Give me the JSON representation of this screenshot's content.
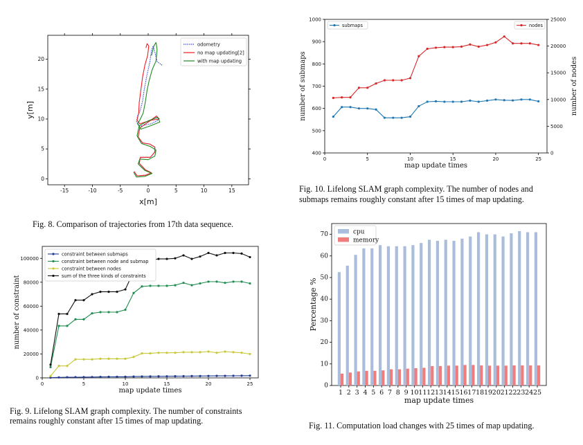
{
  "fig8": {
    "caption": "Fig. 8.   Comparison of trajectories from 17th data sequence.",
    "chart_data": {
      "type": "line",
      "xlabel": "x[m]",
      "ylabel": "y[m]",
      "xlim": [
        -18,
        18
      ],
      "ylim": [
        -1,
        24
      ],
      "xticks": [
        -15,
        -10,
        -5,
        0,
        5,
        10,
        15
      ],
      "yticks": [
        0,
        5,
        10,
        15,
        20
      ],
      "legend_position": "top-right",
      "grid": false,
      "series": [
        {
          "name": "odometry",
          "color": "#3344dd",
          "dashed": true,
          "points": [
            [
              2.5,
              19
            ],
            [
              1.6,
              19.6
            ],
            [
              1.2,
              21.2
            ],
            [
              0.9,
              22.2
            ],
            [
              0.6,
              21.5
            ],
            [
              0.3,
              19.5
            ],
            [
              -0.3,
              17
            ],
            [
              -0.7,
              15
            ],
            [
              -1,
              13
            ],
            [
              -1.4,
              11.5
            ],
            [
              -1.9,
              10.5
            ],
            [
              -2.1,
              9.5
            ],
            [
              -1.5,
              8.8
            ],
            [
              0.5,
              9.2
            ],
            [
              1.8,
              9.8
            ],
            [
              1.5,
              10.3
            ],
            [
              0,
              9.5
            ],
            [
              -1.5,
              8.5
            ],
            [
              -1.8,
              7
            ],
            [
              -1,
              6
            ],
            [
              0.3,
              5.8
            ],
            [
              1.2,
              5.3
            ],
            [
              1.2,
              4.5
            ],
            [
              0.4,
              3.6
            ],
            [
              -1.4,
              3.6
            ],
            [
              -1.6,
              2.6
            ],
            [
              -0.5,
              1.5
            ],
            [
              0.6,
              1
            ],
            [
              -0.5,
              0.6
            ],
            [
              -2,
              0.5
            ],
            [
              -2.6,
              1.3
            ]
          ]
        },
        {
          "name": "no map updating[2]",
          "color": "#ee1c24",
          "dashed": false,
          "points": [
            [
              -0.4,
              21.9
            ],
            [
              -0.2,
              22.6
            ],
            [
              0.1,
              22.2
            ],
            [
              -0.1,
              20.6
            ],
            [
              -0.6,
              19
            ],
            [
              -1,
              17
            ],
            [
              -1.3,
              14.9
            ],
            [
              -1.6,
              12.8
            ],
            [
              -1.7,
              11
            ],
            [
              -2,
              9.8
            ],
            [
              -1.5,
              9.2
            ],
            [
              0.5,
              9.8
            ],
            [
              2,
              10
            ],
            [
              1.5,
              10.5
            ],
            [
              0,
              9.5
            ],
            [
              -1.5,
              8.5
            ],
            [
              -1.8,
              7
            ],
            [
              -1,
              6
            ],
            [
              0.3,
              5.8
            ],
            [
              1.2,
              5.3
            ],
            [
              1.2,
              4.5
            ],
            [
              0.4,
              3.6
            ],
            [
              -1.4,
              3.6
            ],
            [
              -1.6,
              2.6
            ],
            [
              -0.5,
              1.5
            ],
            [
              0.6,
              1
            ],
            [
              -0.5,
              0.6
            ],
            [
              -2,
              0.5
            ],
            [
              -2.5,
              1.2
            ]
          ]
        },
        {
          "name": "with map updating",
          "color": "#1e8c1e",
          "dashed": false,
          "points": [
            [
              0.6,
              20.6
            ],
            [
              1,
              22.2
            ],
            [
              1.4,
              22.8
            ],
            [
              1.6,
              21.6
            ],
            [
              1.4,
              19.7
            ],
            [
              0.7,
              18.2
            ],
            [
              0.2,
              16.5
            ],
            [
              -0.2,
              14.8
            ],
            [
              -0.5,
              12.9
            ],
            [
              -0.9,
              11
            ],
            [
              -1.4,
              10
            ],
            [
              -1.9,
              9.2
            ],
            [
              -1.3,
              8.3
            ],
            [
              0.5,
              8.9
            ],
            [
              2.1,
              9.5
            ],
            [
              1.7,
              10.3
            ],
            [
              0,
              9.7
            ],
            [
              -1.6,
              8.9
            ],
            [
              -2,
              7.2
            ],
            [
              -1.2,
              5.9
            ],
            [
              0.4,
              5.4
            ],
            [
              1.4,
              4.8
            ],
            [
              1.2,
              3.8
            ],
            [
              0,
              3.2
            ],
            [
              -1.5,
              3.3
            ],
            [
              -1.8,
              2.5
            ],
            [
              -0.6,
              1.4
            ],
            [
              0.7,
              0.9
            ],
            [
              -0.6,
              0.4
            ],
            [
              -2.1,
              0.3
            ],
            [
              -2.6,
              1.1
            ]
          ]
        }
      ]
    }
  },
  "fig9": {
    "caption_line1": "Fig. 9.    Lifelong SLAM graph complexity. The number of constraints",
    "caption_line2": "remains roughly constant after 15 times of map updating.",
    "chart_data": {
      "type": "line",
      "xlabel": "map update times",
      "ylabel": "number of constraint",
      "xlim": [
        0,
        26
      ],
      "ylim": [
        0,
        110000
      ],
      "xticks": [
        0,
        5,
        10,
        15,
        20,
        25
      ],
      "yticks": [
        0,
        20000,
        40000,
        60000,
        80000,
        100000
      ],
      "legend_position": "top-left",
      "x": [
        1,
        2,
        3,
        4,
        5,
        6,
        7,
        8,
        9,
        10,
        11,
        12,
        13,
        14,
        15,
        16,
        17,
        18,
        19,
        20,
        21,
        22,
        23,
        24,
        25
      ],
      "series": [
        {
          "name": "constraint between submaps",
          "color": "#1f3a93",
          "values": [
            200,
            400,
            500,
            600,
            650,
            700,
            800,
            850,
            900,
            950,
            1100,
            1200,
            1250,
            1300,
            1350,
            1400,
            1450,
            1500,
            1550,
            1600,
            1650,
            1700,
            1750,
            1800,
            1850
          ]
        },
        {
          "name": "constraint between node and submap",
          "color": "#1e8c4e",
          "values": [
            9000,
            43500,
            43500,
            49000,
            49000,
            54000,
            55000,
            55000,
            55000,
            57000,
            71000,
            76500,
            77000,
            77000,
            77000,
            77500,
            79500,
            77500,
            79000,
            80500,
            80500,
            79500,
            80500,
            80500,
            79000
          ]
        },
        {
          "name": "constraint between nodes",
          "color": "#c8c83a",
          "values": [
            1500,
            10000,
            10000,
            15500,
            15500,
            15500,
            16000,
            16000,
            16000,
            16000,
            17500,
            20500,
            20500,
            21000,
            21000,
            21000,
            21500,
            21500,
            21500,
            22000,
            21000,
            22000,
            21500,
            21000,
            20000
          ]
        },
        {
          "name": "sum of the three kinds of constraints",
          "color": "#111111",
          "values": [
            11000,
            53500,
            53500,
            65000,
            65000,
            70000,
            72000,
            72000,
            72000,
            74000,
            89000,
            98000,
            98500,
            99500,
            99500,
            100000,
            102500,
            99500,
            101500,
            104500,
            102500,
            104500,
            104500,
            104000,
            101000
          ]
        }
      ]
    }
  },
  "fig10": {
    "caption_line1": "Fig. 10.    Lifelong SLAM graph complexity. The number of nodes and",
    "caption_line2": "submaps remains roughly constant after 15 times of map updating.",
    "chart_data": {
      "type": "line",
      "xlabel": "map update times",
      "ylabel": "number of submaps",
      "y2label": "number of nodes",
      "xlim": [
        0,
        26
      ],
      "ylim": [
        400,
        1000
      ],
      "y2lim": [
        0,
        25000
      ],
      "xticks": [
        0,
        5,
        10,
        15,
        20,
        25
      ],
      "yticks": [
        400,
        500,
        600,
        700,
        800,
        900,
        1000
      ],
      "y2ticks": [
        0,
        5000,
        10000,
        15000,
        20000,
        25000
      ],
      "x": [
        1,
        2,
        3,
        4,
        5,
        6,
        7,
        8,
        9,
        10,
        11,
        12,
        13,
        14,
        15,
        16,
        17,
        18,
        19,
        20,
        21,
        22,
        23,
        24,
        25
      ],
      "series": [
        {
          "name": "submaps",
          "color": "#1f77b4",
          "axis": "left",
          "legend": "top-left",
          "values": [
            563,
            606,
            606,
            600,
            600,
            595,
            558,
            558,
            558,
            563,
            610,
            630,
            632,
            630,
            630,
            630,
            635,
            630,
            635,
            640,
            637,
            636,
            640,
            640,
            632
          ]
        },
        {
          "name": "nodes",
          "color": "#d62728",
          "axis": "right",
          "legend": "top-right",
          "values": [
            10300,
            10400,
            10400,
            12200,
            12200,
            13000,
            13600,
            13600,
            13600,
            14000,
            18100,
            19500,
            19700,
            19800,
            19800,
            19900,
            20300,
            19900,
            20200,
            20700,
            21800,
            20500,
            20500,
            20500,
            20200
          ]
        }
      ]
    }
  },
  "fig11": {
    "caption": "Fig. 11.    Computation load changes with 25 times of map updating.",
    "chart_data": {
      "type": "bar",
      "xlabel": "map update times",
      "ylabel": "Percentage %",
      "ylim": [
        0,
        75
      ],
      "yticks": [
        0,
        10,
        20,
        30,
        40,
        50,
        60,
        70
      ],
      "categories": [
        "1",
        "2",
        "3",
        "4",
        "5",
        "6",
        "7",
        "8",
        "9",
        "10",
        "11",
        "12",
        "13",
        "14",
        "15",
        "16",
        "17",
        "18",
        "19",
        "20",
        "21",
        "22",
        "23",
        "24",
        "25"
      ],
      "legend_position": "top-left",
      "series": [
        {
          "name": "cpu",
          "color": "#aabedc",
          "values": [
            52.5,
            55.5,
            60.5,
            63.5,
            63.5,
            65,
            64.5,
            64.5,
            64.5,
            65,
            66,
            67.5,
            67,
            67.5,
            67,
            68,
            69,
            71,
            70,
            70,
            69,
            70.5,
            71.5,
            71,
            71
          ]
        },
        {
          "name": "memory",
          "color": "#f07d7d",
          "values": [
            5.5,
            6,
            6.5,
            6.8,
            6.8,
            7,
            7.5,
            7.5,
            7.8,
            8,
            8.2,
            9,
            9,
            9.2,
            9.2,
            9.5,
            9.5,
            9.3,
            9.2,
            9.2,
            9.2,
            9.3,
            9.3,
            9.3,
            9.3
          ]
        }
      ]
    }
  }
}
